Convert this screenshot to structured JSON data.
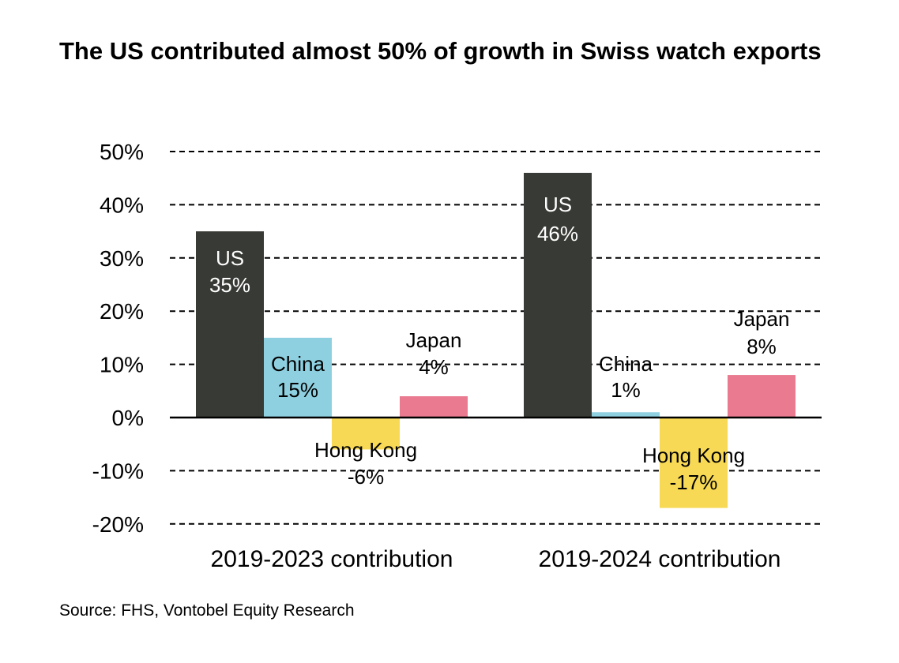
{
  "chart_data": {
    "type": "bar",
    "title": "The US contributed almost 50% of growth in Swiss watch exports",
    "xlabel": "",
    "ylabel": "",
    "ylim": [
      -20,
      50
    ],
    "yticks": [
      50,
      40,
      30,
      20,
      10,
      0,
      -10,
      -20
    ],
    "ytick_labels": [
      "50%",
      "40%",
      "30%",
      "20%",
      "10%",
      "0%",
      "-10%",
      "-20%"
    ],
    "grid": true,
    "categories": [
      "2019-2023 contribution",
      "2019-2024 contribution"
    ],
    "series": [
      {
        "name": "US",
        "color": "#383a35",
        "values": [
          35,
          46
        ],
        "labels": [
          "35%",
          "46%"
        ]
      },
      {
        "name": "China",
        "color": "#8fd0e0",
        "values": [
          15,
          1
        ],
        "labels": [
          "15%",
          "1%"
        ]
      },
      {
        "name": "Hong Kong",
        "color": "#f7d955",
        "values": [
          -6,
          -17
        ],
        "labels": [
          "-6%",
          "-17%"
        ]
      },
      {
        "name": "Japan",
        "color": "#e97a90",
        "values": [
          4,
          8
        ],
        "labels": [
          "4%",
          "8%"
        ]
      }
    ]
  },
  "source": "Source: FHS, Vontobel Equity Research"
}
